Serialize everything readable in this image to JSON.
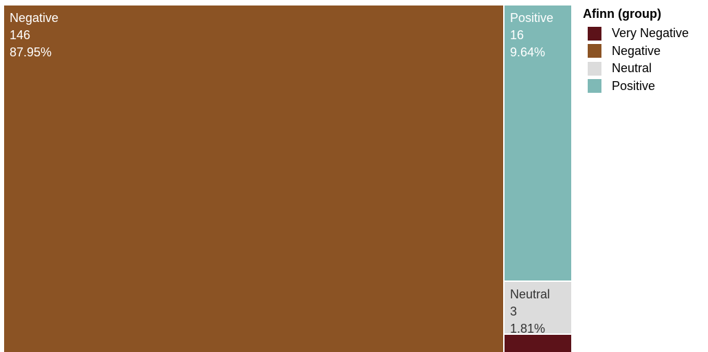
{
  "chart_data": {
    "type": "treemap",
    "legend_title": "Afinn (group)",
    "legend_position": "top-right",
    "categories": [
      "Very Negative",
      "Negative",
      "Neutral",
      "Positive"
    ],
    "colors": {
      "Very Negative": "#5c1219",
      "Negative": "#8b5324",
      "Neutral": "#dcdcdc",
      "Positive": "#7fb9b6"
    },
    "tiles": [
      {
        "category": "Negative",
        "label": "Negative",
        "value_text": "146",
        "percent_text": "87.95%",
        "value": 146,
        "percent": 87.95
      },
      {
        "category": "Positive",
        "label": "Positive",
        "value_text": "16",
        "percent_text": "9.64%",
        "value": 16,
        "percent": 9.64
      },
      {
        "category": "Neutral",
        "label": "Neutral",
        "value_text": "3",
        "percent_text": "1.81%",
        "value": 3,
        "percent": 1.81
      },
      {
        "category": "Very Negative",
        "label": "",
        "value_text": "",
        "percent_text": "",
        "value": 1,
        "percent": 0.6
      }
    ]
  }
}
